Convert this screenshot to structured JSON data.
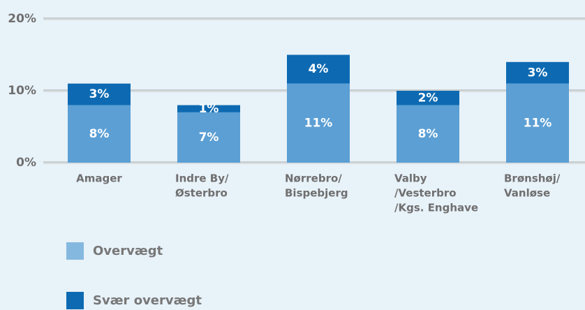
{
  "chart_data": {
    "type": "stacked_bar",
    "categories": [
      [
        "Amager"
      ],
      [
        "Indre By/",
        "Østerbro"
      ],
      [
        "Nørrebro/",
        "Bispebjerg"
      ],
      [
        "Valby",
        "/Vesterbro",
        "/Kgs. Enghave"
      ],
      [
        "Brønshøj/",
        "Vanløse"
      ]
    ],
    "series": [
      {
        "name": "Overvægt",
        "color": "#5b9fd4",
        "values": [
          8,
          7,
          11,
          8,
          11
        ],
        "value_labels": [
          "8%",
          "7%",
          "11%",
          "8%",
          "11%"
        ]
      },
      {
        "name": "Svær overvægt",
        "color": "#0d6ab2",
        "values": [
          3,
          1,
          4,
          2,
          3
        ],
        "value_labels": [
          "3%",
          "1%",
          "4%",
          "2%",
          "3%"
        ]
      }
    ],
    "ylim": [
      0,
      20
    ],
    "yticks": [
      {
        "value": 0,
        "label": "0%"
      },
      {
        "value": 10,
        "label": "10%"
      },
      {
        "value": 20,
        "label": "20%"
      }
    ],
    "grid": true
  }
}
